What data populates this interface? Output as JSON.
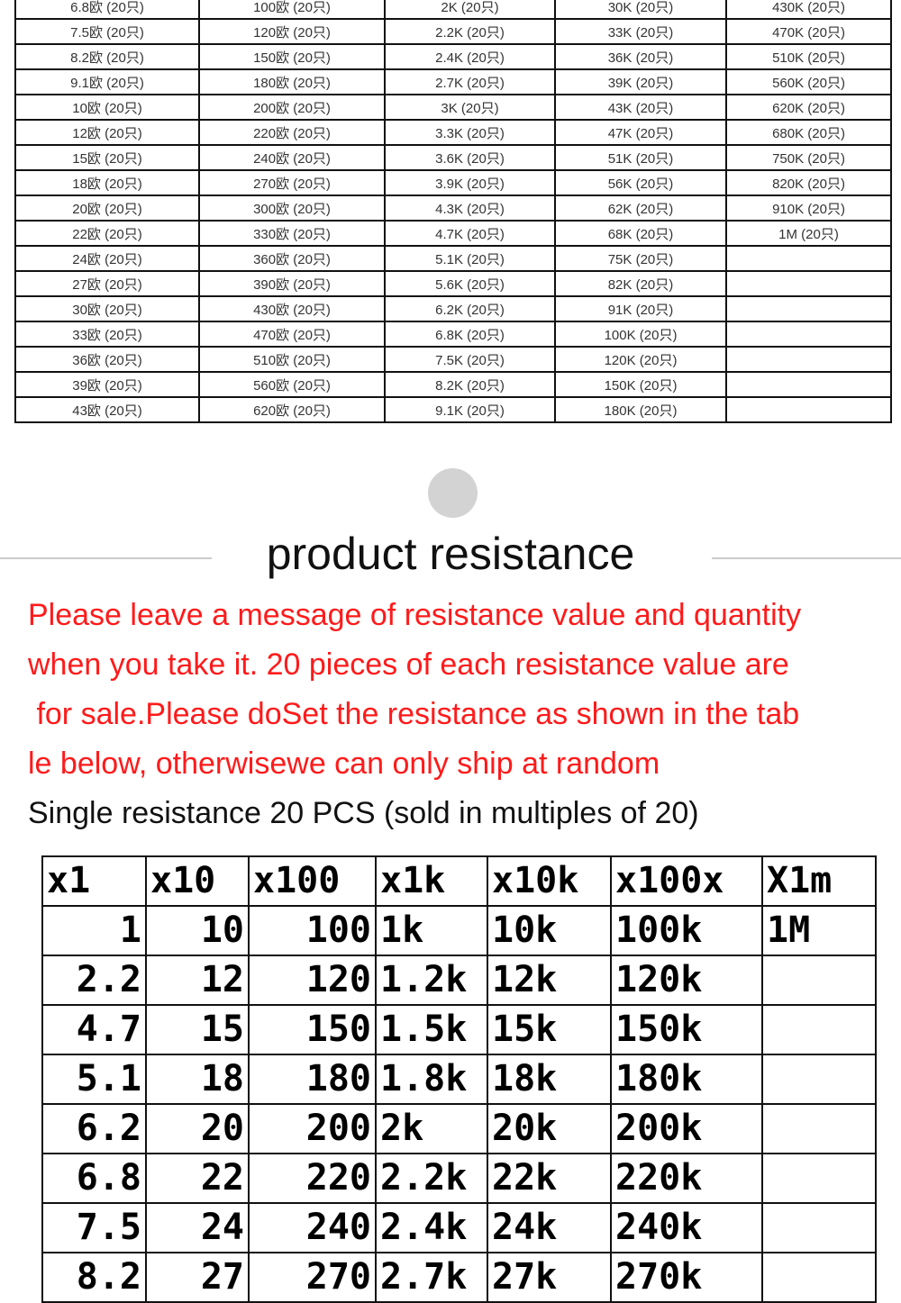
{
  "price_table": {
    "rows": [
      [
        "6.8欧 (20只)",
        "100欧 (20只)",
        "2K (20只)",
        "30K (20只)",
        "430K (20只)"
      ],
      [
        "7.5欧 (20只)",
        "120欧 (20只)",
        "2.2K (20只)",
        "33K (20只)",
        "470K (20只)"
      ],
      [
        "8.2欧 (20只)",
        "150欧 (20只)",
        "2.4K (20只)",
        "36K (20只)",
        "510K (20只)"
      ],
      [
        "9.1欧 (20只)",
        "180欧 (20只)",
        "2.7K (20只)",
        "39K (20只)",
        "560K (20只)"
      ],
      [
        "10欧 (20只)",
        "200欧 (20只)",
        "3K (20只)",
        "43K (20只)",
        "620K (20只)"
      ],
      [
        "12欧 (20只)",
        "220欧 (20只)",
        "3.3K (20只)",
        "47K (20只)",
        "680K (20只)"
      ],
      [
        "15欧 (20只)",
        "240欧 (20只)",
        "3.6K (20只)",
        "51K (20只)",
        "750K (20只)"
      ],
      [
        "18欧 (20只)",
        "270欧 (20只)",
        "3.9K (20只)",
        "56K (20只)",
        "820K (20只)"
      ],
      [
        "20欧 (20只)",
        "300欧 (20只)",
        "4.3K (20只)",
        "62K (20只)",
        "910K (20只)"
      ],
      [
        "22欧 (20只)",
        "330欧 (20只)",
        "4.7K (20只)",
        "68K (20只)",
        "1M (20只)"
      ],
      [
        "24欧 (20只)",
        "360欧 (20只)",
        "5.1K (20只)",
        "75K (20只)",
        ""
      ],
      [
        "27欧 (20只)",
        "390欧 (20只)",
        "5.6K (20只)",
        "82K (20只)",
        ""
      ],
      [
        "30欧 (20只)",
        "430欧 (20只)",
        "6.2K (20只)",
        "91K (20只)",
        ""
      ],
      [
        "33欧 (20只)",
        "470欧 (20只)",
        "6.8K (20只)",
        "100K (20只)",
        ""
      ],
      [
        "36欧 (20只)",
        "510欧 (20只)",
        "7.5K (20只)",
        "120K (20只)",
        ""
      ],
      [
        "39欧 (20只)",
        "560欧 (20只)",
        "8.2K (20只)",
        "150K (20只)",
        ""
      ],
      [
        "43欧 (20只)",
        "620欧 (20只)",
        "9.1K (20只)",
        "180K (20只)",
        ""
      ]
    ]
  },
  "section": {
    "title": "product resistance",
    "notice_lines": [
      "Please leave a message of resistance value and quantity",
      "when you take it. 20 pieces of each resistance value are",
      " for sale.Please doSet the resistance as shown in the tab",
      "le below, otherwisewe can only ship at random"
    ],
    "notice_color": "#ff1a1a",
    "subtitle": "Single resistance 20 PCS (sold in multiples of 20)"
  },
  "multiplier_table": {
    "headers": [
      "x1",
      "x10",
      "x100",
      "x1k",
      "x10k",
      "x100x",
      "X1m"
    ],
    "rows": [
      [
        "1",
        "10",
        "100",
        "1k",
        "10k",
        "100k",
        "1M"
      ],
      [
        "2.2",
        "12",
        "120",
        "1.2k",
        "12k",
        "120k",
        ""
      ],
      [
        "4.7",
        "15",
        "150",
        "1.5k",
        "15k",
        "150k",
        ""
      ],
      [
        "5.1",
        "18",
        "180",
        "1.8k",
        "18k",
        "180k",
        ""
      ],
      [
        "6.2",
        "20",
        "200",
        "2k",
        "20k",
        "200k",
        ""
      ],
      [
        "6.8",
        "22",
        "220",
        "2.2k",
        "22k",
        "220k",
        ""
      ],
      [
        "7.5",
        "24",
        "240",
        "2.4k",
        "24k",
        "240k",
        ""
      ],
      [
        "8.2",
        "27",
        "270",
        "2.7k",
        "27k",
        "270k",
        ""
      ]
    ]
  }
}
